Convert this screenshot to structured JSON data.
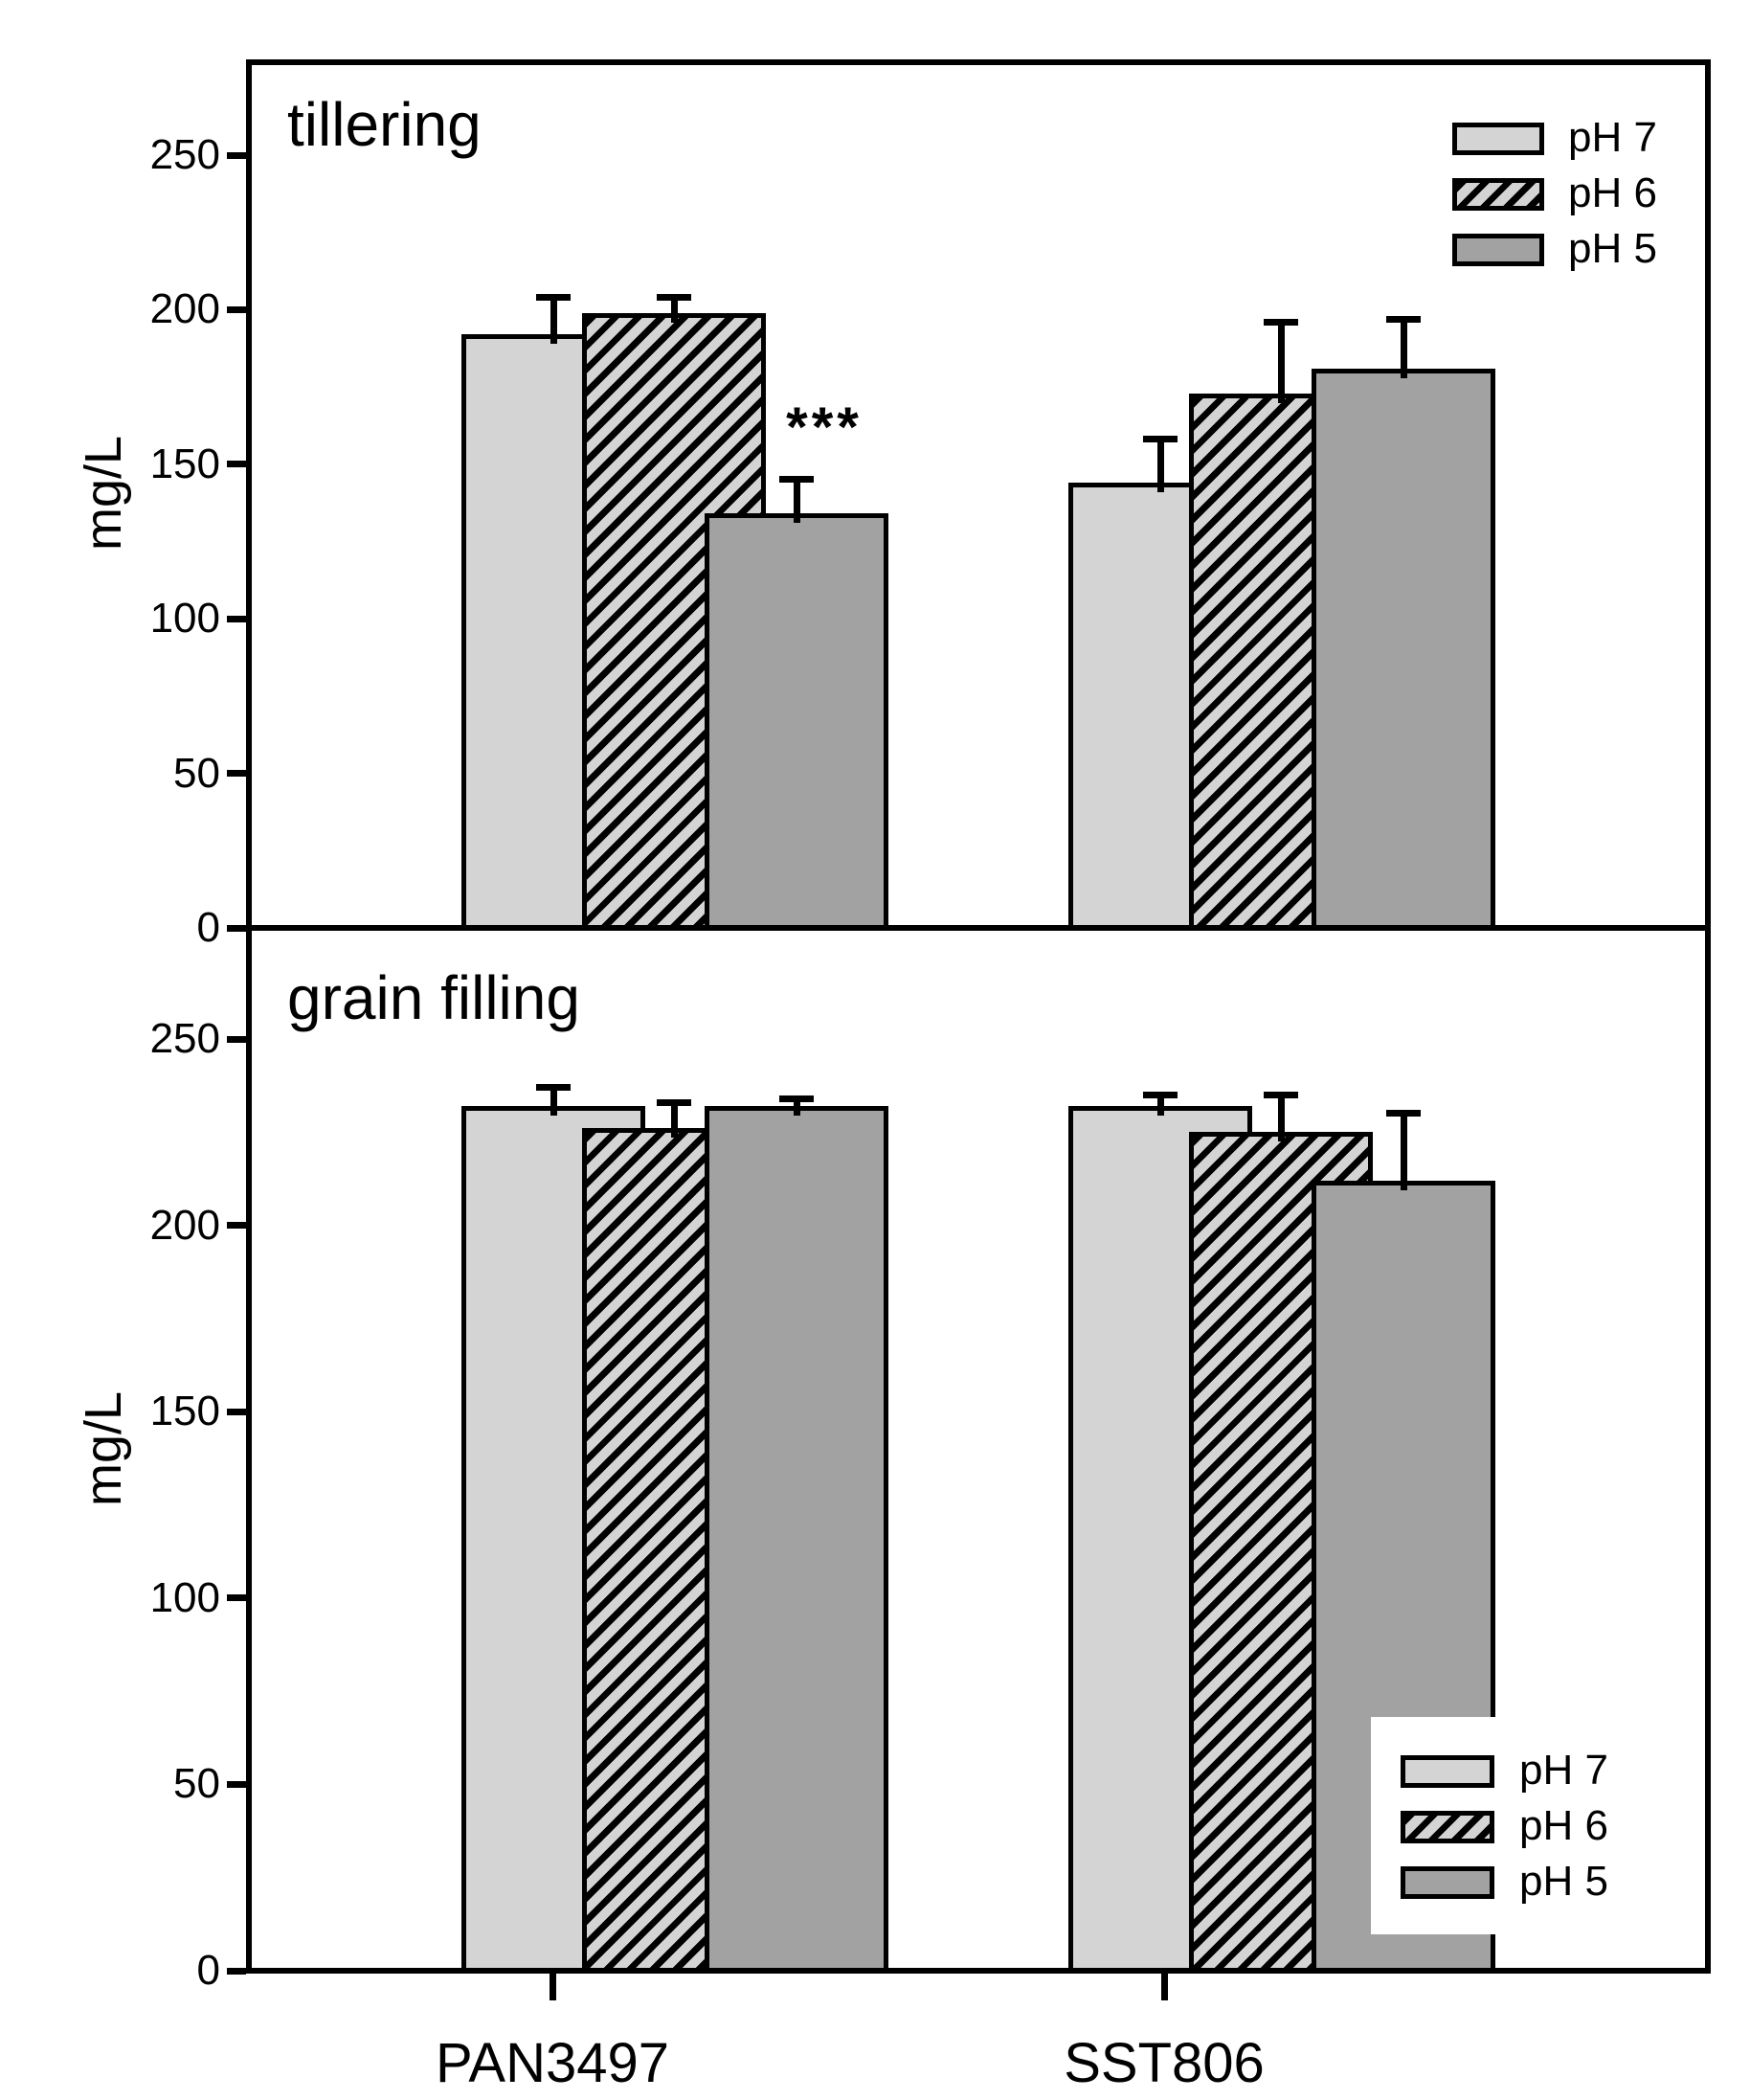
{
  "figure": {
    "y_axis_label": "mg/L",
    "x_categories": [
      "PAN3497",
      "SST806"
    ],
    "legend_items": [
      {
        "label": "pH 7",
        "style": "solid-light"
      },
      {
        "label": "pH 6",
        "style": "hatched"
      },
      {
        "label": "pH 5",
        "style": "solid-dark"
      }
    ],
    "colors": {
      "bar_light": "#d4d4d4",
      "bar_dark": "#a2a2a2",
      "hatch_stripe": "#000000",
      "border": "#000000",
      "background": "#ffffff"
    }
  },
  "chart_data": [
    {
      "type": "bar",
      "panel": "top",
      "title": "tillering",
      "ylabel": "mg/L",
      "ylim": [
        0,
        280
      ],
      "yticks": [
        0,
        50,
        100,
        150,
        200,
        250
      ],
      "grid": false,
      "legend_position": "top-right-inside",
      "categories": [
        "PAN3497",
        "SST806"
      ],
      "series": [
        {
          "name": "pH 7",
          "values": [
            192,
            144
          ],
          "errors": [
            12,
            14
          ]
        },
        {
          "name": "pH 6",
          "values": [
            199,
            173
          ],
          "errors": [
            5,
            23
          ]
        },
        {
          "name": "pH 5",
          "values": [
            134,
            181
          ],
          "errors": [
            11,
            16
          ]
        }
      ],
      "annotations": [
        {
          "text": "***",
          "category": "PAN3497",
          "series": "pH 5"
        }
      ]
    },
    {
      "type": "bar",
      "panel": "bottom",
      "title": "grain filling",
      "ylabel": "mg/L",
      "ylim": [
        0,
        280
      ],
      "yticks": [
        0,
        50,
        100,
        150,
        200,
        250
      ],
      "grid": false,
      "legend_position": "bottom-right-inside",
      "categories": [
        "PAN3497",
        "SST806"
      ],
      "series": [
        {
          "name": "pH 7",
          "values": [
            232,
            232
          ],
          "errors": [
            5,
            3
          ]
        },
        {
          "name": "pH 6",
          "values": [
            226,
            225
          ],
          "errors": [
            7,
            10
          ]
        },
        {
          "name": "pH 5",
          "values": [
            232,
            212
          ],
          "errors": [
            2,
            18
          ]
        }
      ],
      "annotations": []
    }
  ]
}
